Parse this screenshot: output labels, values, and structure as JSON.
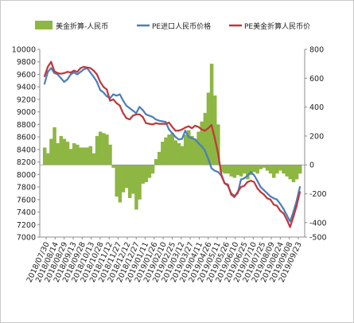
{
  "chart_data": {
    "type": "line",
    "title": "",
    "xlabel": "",
    "ylabel": "",
    "ylim_left": [
      7000,
      10000
    ],
    "yticks_left": [
      "10000",
      "9800",
      "9600",
      "9400",
      "9200",
      "9000",
      "8800",
      "8600",
      "8400",
      "8200",
      "8000",
      "7800",
      "7600",
      "7400",
      "7200",
      "7000"
    ],
    "ylim_right": [
      -500,
      800
    ],
    "yticks_right": [
      "800",
      "600",
      "400",
      "200",
      "0",
      "-200",
      "-400",
      "-500"
    ],
    "legend_position": "top",
    "grid": false,
    "x_tick_labels": [
      "2018/07/30",
      "2018/08/14",
      "2018/08/29",
      "2018/09/13",
      "2018/09/28",
      "2018/10/13",
      "2018/10/28",
      "2018/11/12",
      "2018/11/27",
      "2018/12/12",
      "2018/12/27",
      "2019/01/11",
      "2019/01/26",
      "2019/02/10",
      "2019/02/25",
      "2019/03/12",
      "2019/03/27",
      "2019/04/11",
      "2019/04/26",
      "2019/05/11",
      "2019/05/26",
      "2019/06/10",
      "2019/06/25",
      "2019/07/10",
      "2019/07/25",
      "2019/08/09",
      "2019/08/24",
      "2019/09/08",
      "2019/09/23"
    ],
    "series": [
      {
        "name": "美金折算-人民币",
        "kind": "area",
        "axis": "right",
        "color": "#8db642",
        "values": [
          120,
          80,
          180,
          260,
          150,
          200,
          180,
          160,
          110,
          150,
          140,
          120,
          120,
          120,
          130,
          80,
          200,
          230,
          220,
          210,
          140,
          -20,
          -220,
          -260,
          -190,
          -160,
          -230,
          -200,
          -310,
          -240,
          -130,
          -120,
          -90,
          -60,
          40,
          90,
          160,
          190,
          210,
          220,
          170,
          150,
          130,
          210,
          240,
          200,
          180,
          230,
          300,
          360,
          500,
          700,
          480,
          280,
          -50,
          -60,
          -60,
          -80,
          -90,
          -70,
          -80,
          -60,
          -100,
          -70,
          -50,
          -60,
          -30,
          -20,
          -40,
          -60,
          -90,
          -60,
          -40,
          -60,
          -80,
          -100,
          -120,
          -100,
          -60
        ]
      },
      {
        "name": "PE进口人民币价格",
        "kind": "line",
        "axis": "left",
        "color": "#4a7ebb",
        "values": [
          9450,
          9640,
          9700,
          9620,
          9600,
          9540,
          9480,
          9520,
          9600,
          9630,
          9600,
          9640,
          9680,
          9700,
          9630,
          9560,
          9480,
          9350,
          9310,
          9250,
          9220,
          9280,
          9260,
          9280,
          9180,
          9100,
          9060,
          9020,
          8980,
          9080,
          9030,
          8960,
          8940,
          8920,
          8880,
          8860,
          8850,
          8840,
          8720,
          8660,
          8600,
          8560,
          8570,
          8700,
          8600,
          8580,
          8560,
          8500,
          8450,
          8380,
          8250,
          8100,
          8060,
          8040,
          7980,
          7860,
          7820,
          7700,
          7660,
          7700,
          7920,
          7940,
          7980,
          8040,
          7990,
          7900,
          7800,
          7750,
          7700,
          7650,
          7620,
          7600,
          7530,
          7450,
          7350,
          7250,
          7400,
          7580,
          7800
        ]
      },
      {
        "name": "PE美金折算人民币价",
        "kind": "line",
        "axis": "left",
        "color": "#c0373a",
        "values": [
          9570,
          9720,
          9800,
          9650,
          9620,
          9610,
          9620,
          9640,
          9630,
          9660,
          9640,
          9700,
          9720,
          9710,
          9700,
          9660,
          9600,
          9480,
          9400,
          9360,
          9180,
          9200,
          9140,
          9100,
          8980,
          8900,
          8880,
          8940,
          8960,
          8960,
          8920,
          8820,
          8810,
          8800,
          8820,
          8810,
          8810,
          8810,
          8830,
          8760,
          8700,
          8700,
          8720,
          8750,
          8770,
          8740,
          8780,
          8760,
          8720,
          8700,
          8740,
          8790,
          8580,
          8340,
          8000,
          7860,
          7840,
          7680,
          7640,
          7720,
          7800,
          7820,
          7880,
          7900,
          7880,
          7780,
          7720,
          7680,
          7620,
          7600,
          7520,
          7500,
          7420,
          7380,
          7280,
          7160,
          7320,
          7500,
          7720
        ]
      }
    ]
  }
}
